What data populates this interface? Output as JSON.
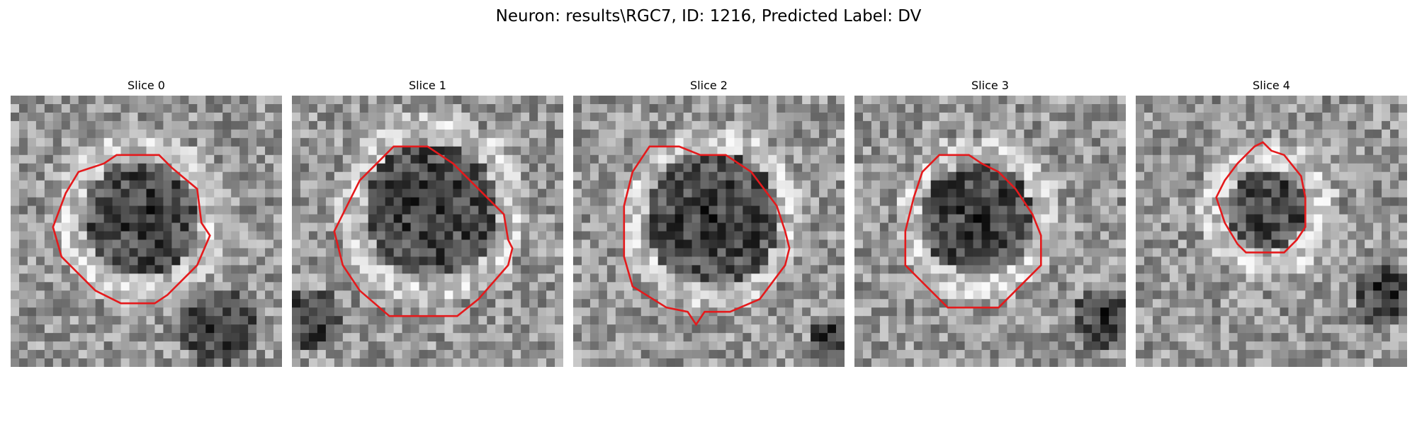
{
  "figure": {
    "title": "Neuron: results\\RGC7, ID: 1216, Predicted Label: DV"
  },
  "panels": [
    {
      "title": "Slice 0"
    },
    {
      "title": "Slice 1"
    },
    {
      "title": "Slice 2"
    },
    {
      "title": "Slice 3"
    },
    {
      "title": "Slice 4"
    }
  ],
  "contour_color": "#e41a1c"
}
